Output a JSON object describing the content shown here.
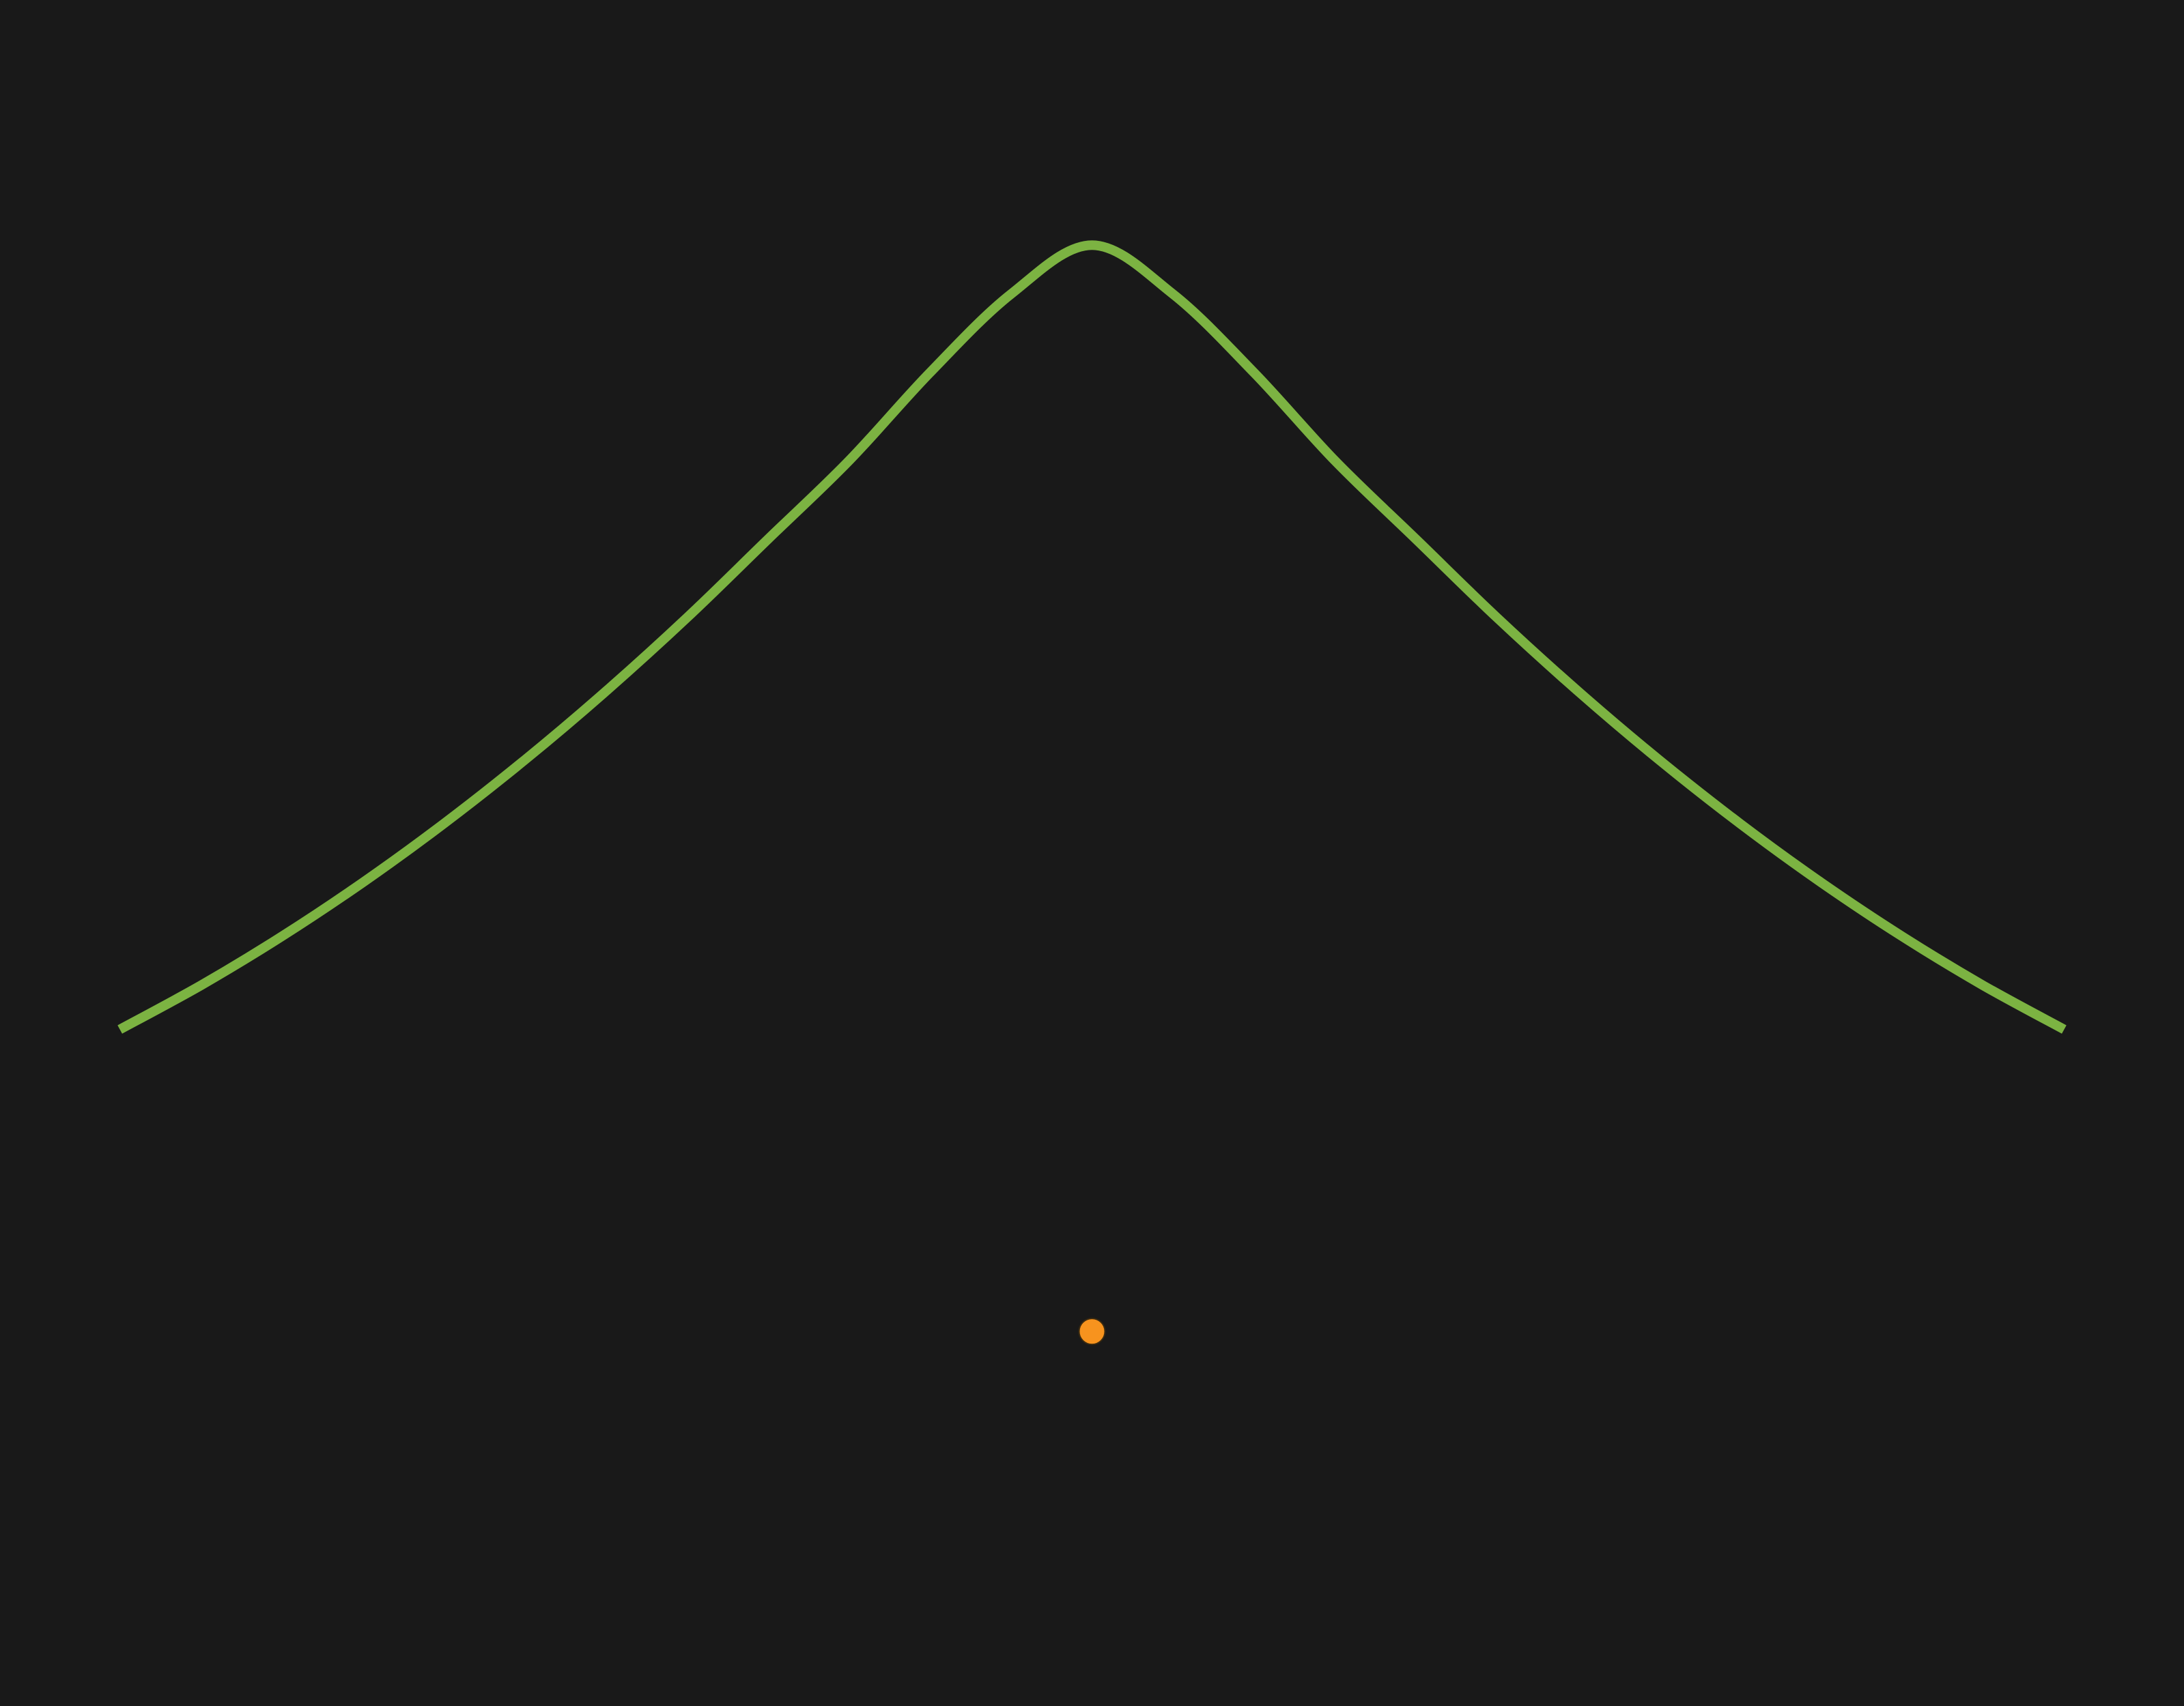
{
  "chart_data": {
    "type": "line",
    "title": "",
    "xlabel": "",
    "ylabel": "",
    "grid": false,
    "legend": "none",
    "background": "#191919",
    "series": [
      {
        "role": "bell-curve",
        "color": "#7CB342",
        "x": [
          -3,
          -2.75,
          -2.5,
          -2.25,
          -2,
          -1.75,
          -1.5,
          -1.25,
          -1,
          -0.75,
          -0.5,
          -0.25,
          0,
          0.25,
          0.5,
          0.75,
          1,
          1.25,
          1.5,
          1.75,
          2,
          2.25,
          2.5,
          2.75,
          3
        ],
        "y": [
          0,
          0.045,
          0.095,
          0.15,
          0.21,
          0.275,
          0.345,
          0.42,
          0.5,
          0.58,
          0.67,
          0.75,
          0.8,
          0.75,
          0.67,
          0.58,
          0.5,
          0.42,
          0.345,
          0.275,
          0.21,
          0.15,
          0.095,
          0.045,
          0
        ]
      }
    ],
    "marker": {
      "color": "#F7931E",
      "x": 0,
      "y": -0.308
    },
    "xlim": [
      -3.37,
      3.37
    ],
    "ylim": [
      -0.69,
      1.05
    ]
  }
}
